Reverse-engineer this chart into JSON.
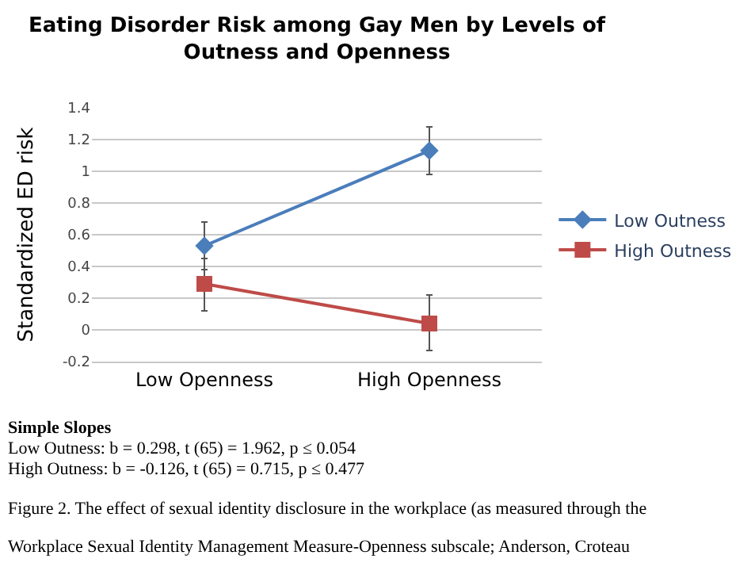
{
  "chart_data": {
    "type": "line",
    "title": "Eating Disorder Risk among Gay Men by Levels of\nOutness and Openness",
    "ylabel": "Standardized ED risk",
    "categories": [
      "Low Openness",
      "High Openness"
    ],
    "series": [
      {
        "name": "Low Outness",
        "color": "#4a7ebb",
        "marker": "diamond",
        "values": [
          0.53,
          1.13
        ],
        "errors": [
          [
            0.38,
            0.68
          ],
          [
            0.98,
            1.28
          ]
        ]
      },
      {
        "name": "High Outness",
        "color": "#be4b48",
        "marker": "square",
        "values": [
          0.29,
          0.04
        ],
        "errors": [
          [
            0.12,
            0.45
          ],
          [
            -0.13,
            0.22
          ]
        ]
      }
    ],
    "ylim": [
      -0.2,
      1.4
    ],
    "yticks": [
      -0.2,
      0,
      0.2,
      0.4,
      0.6,
      0.8,
      1,
      1.2,
      1.4
    ],
    "grid": "y",
    "legend": "right",
    "line_style": "solid",
    "annotations": [
      "Simple Slopes",
      "Low Outness: b = 0.298, t (65) = 1.962, p ≤ 0.054",
      "High Outness: b = -0.126, t (65) = 0.715, p ≤ 0.477",
      "Figure 2. The effect of sexual identity disclosure in the workplace (as measured through the",
      "Workplace Sexual Identity Management Measure-Openness subscale; Anderson, Croteau"
    ]
  }
}
